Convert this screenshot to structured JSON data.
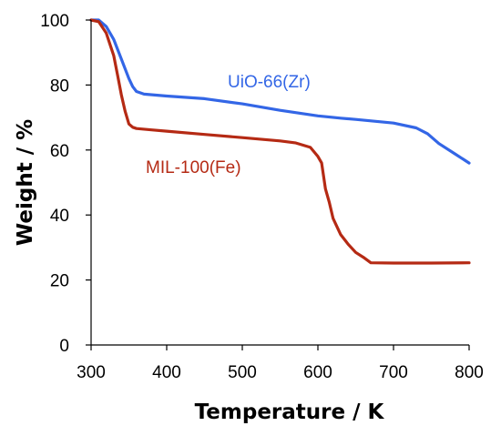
{
  "chart_data": {
    "type": "line",
    "title": "",
    "xlabel": "Temperature / K",
    "ylabel": "Weight / %",
    "xlim": [
      300,
      800
    ],
    "ylim": [
      0,
      100
    ],
    "xticks": [
      300,
      400,
      500,
      600,
      700,
      800
    ],
    "yticks": [
      0,
      20,
      40,
      60,
      80,
      100
    ],
    "grid": false,
    "legend": "inline labels next to curves",
    "series": [
      {
        "name": "UiO-66(Zr)",
        "color": "#3366e6",
        "x": [
          300,
          310,
          320,
          330,
          340,
          350,
          355,
          360,
          370,
          400,
          450,
          500,
          550,
          600,
          630,
          650,
          700,
          730,
          745,
          760,
          780,
          800
        ],
        "y": [
          100,
          100,
          98,
          94,
          88,
          82,
          79.5,
          78,
          77.2,
          76.6,
          75.8,
          74.2,
          72.2,
          70.5,
          69.8,
          69.4,
          68.3,
          66.8,
          65,
          62,
          59,
          56
        ]
      },
      {
        "name": "MIL-100(Fe)",
        "color": "#b52a14",
        "x": [
          300,
          310,
          320,
          330,
          335,
          340,
          345,
          350,
          355,
          360,
          380,
          400,
          450,
          500,
          550,
          570,
          590,
          600,
          605,
          610,
          615,
          620,
          630,
          640,
          650,
          660,
          670,
          700,
          750,
          800
        ],
        "y": [
          100,
          99.5,
          96,
          89,
          83,
          77,
          72,
          68,
          67,
          66.6,
          66.2,
          65.8,
          64.8,
          63.8,
          62.8,
          62.2,
          60.8,
          58,
          56,
          48,
          44,
          39,
          34,
          31,
          28.5,
          27,
          25.3,
          25.2,
          25.2,
          25.3
        ]
      }
    ]
  }
}
